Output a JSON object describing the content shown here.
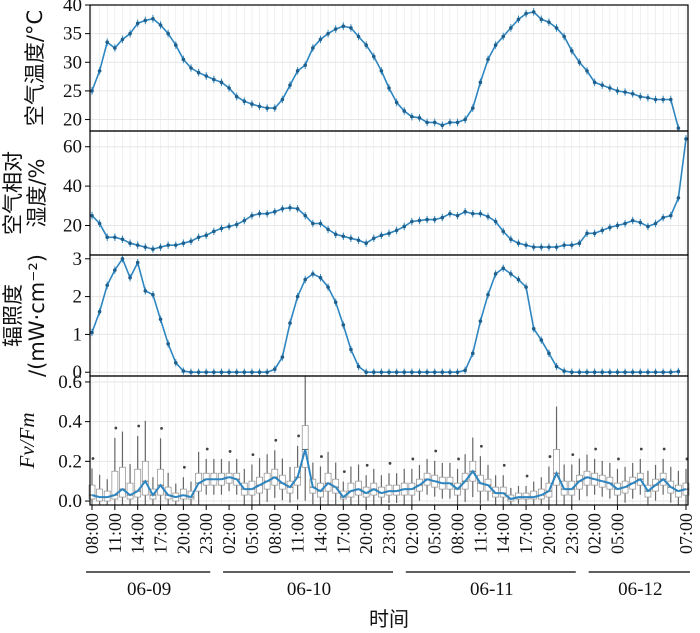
{
  "xaxis": {
    "title": "时间",
    "time_ticks": [
      "08:00",
      "11:00",
      "14:00",
      "17:00",
      "20:00",
      "23:00",
      "02:00",
      "05:00",
      "08:00",
      "11:00",
      "14:00",
      "17:00",
      "20:00",
      "23:00",
      "02:00",
      "05:00",
      "08:00",
      "11:00",
      "14:00",
      "17:00",
      "20:00",
      "23:00",
      "02:00",
      "05:00",
      "07:00"
    ],
    "days": [
      "06-09",
      "06-10",
      "06-11",
      "06-12"
    ]
  },
  "colors": {
    "line": "#2e86c1",
    "grid": "#e6e6e6",
    "box": "#666666"
  },
  "chart_data": [
    {
      "type": "line",
      "ylabel": "空气温度/°C",
      "ylim": [
        18,
        40
      ],
      "yticks": [
        20,
        25,
        30,
        35,
        40
      ],
      "x_start": "06-09 08:00",
      "step_hours": 1,
      "values": [
        25,
        28.5,
        33.5,
        32.5,
        34,
        35,
        36.8,
        37.3,
        37.6,
        36.5,
        35,
        33,
        30.5,
        29,
        28.2,
        27.6,
        27,
        26.5,
        25.5,
        24,
        23.2,
        22.7,
        22.3,
        22,
        22,
        23.5,
        26,
        28.5,
        29.5,
        32.5,
        34,
        35,
        35.8,
        36.3,
        36,
        34.5,
        33,
        31,
        28.5,
        25.5,
        23,
        21.5,
        20.5,
        20.3,
        19.5,
        19.5,
        19,
        19.5,
        19.5,
        20,
        22,
        26.5,
        30.5,
        33,
        34.5,
        36,
        37.5,
        38.5,
        38.8,
        37.5,
        37,
        36,
        34.5,
        32,
        30,
        28.5,
        26.5,
        26,
        25.5,
        25,
        24.8,
        24.5,
        24,
        23.8,
        23.5,
        23.5,
        23.5,
        18.5
      ],
      "grid": true
    },
    {
      "type": "line",
      "ylabel": "空气相对湿度/%",
      "ylim": [
        5,
        68
      ],
      "yticks": [
        20,
        40,
        60
      ],
      "x_start": "06-09 08:00",
      "step_hours": 1,
      "values": [
        25,
        21,
        14,
        14,
        13,
        11,
        10,
        9,
        8,
        9,
        10,
        10,
        11,
        12,
        14,
        15,
        17,
        18.5,
        19.5,
        20.5,
        22.5,
        25,
        26,
        26,
        27,
        28.5,
        29,
        28.5,
        25,
        21,
        21,
        18,
        15.5,
        14.5,
        13.5,
        12.5,
        11,
        13.5,
        15,
        16,
        17.5,
        19.5,
        22,
        22.5,
        23,
        23,
        24,
        26,
        25,
        27,
        26,
        26,
        24.5,
        22,
        17,
        13,
        11,
        10,
        9,
        9,
        9,
        9,
        10,
        10,
        11,
        16,
        16,
        17.5,
        19,
        20,
        21,
        22.5,
        21.5,
        19.5,
        21,
        24,
        25,
        34,
        64
      ],
      "grid": true
    },
    {
      "type": "line",
      "ylabel": "辐照度/(mW·cm⁻²)",
      "ylim": [
        -0.1,
        3.1
      ],
      "yticks": [
        0,
        1,
        2,
        3
      ],
      "x_start": "06-09 08:00",
      "step_hours": 1,
      "values": [
        1.05,
        1.6,
        2.3,
        2.7,
        3.0,
        2.5,
        2.9,
        2.15,
        2.05,
        1.4,
        0.75,
        0.25,
        0.03,
        0,
        0,
        0,
        0,
        0,
        0,
        0,
        0,
        0,
        0,
        0,
        0.08,
        0.4,
        1.3,
        2.0,
        2.45,
        2.6,
        2.5,
        2.25,
        1.85,
        1.25,
        0.6,
        0.15,
        0,
        0,
        0,
        0,
        0,
        0,
        0,
        0,
        0,
        0,
        0,
        0,
        0,
        0.05,
        0.5,
        1.35,
        2.05,
        2.6,
        2.75,
        2.6,
        2.45,
        2.25,
        1.15,
        0.85,
        0.5,
        0.15,
        0.03,
        0,
        0,
        0,
        0,
        0,
        0,
        0,
        0,
        0,
        0,
        0,
        0,
        0,
        0,
        0.02
      ],
      "grid": true
    },
    {
      "type": "box",
      "ylabel": "Fv/Fm",
      "ylim": [
        -0.02,
        0.63
      ],
      "yticks": [
        0.0,
        0.2,
        0.4,
        0.6
      ],
      "ytick_labels": [
        "0.0",
        "0.2",
        "0.4",
        "0.6"
      ],
      "x_start": "06-09 08:00",
      "step_hours": 1,
      "median": [
        0.03,
        0.02,
        0.02,
        0.03,
        0.06,
        0.03,
        0.05,
        0.1,
        0.03,
        0.08,
        0.03,
        0.02,
        0.03,
        0.02,
        0.09,
        0.11,
        0.11,
        0.11,
        0.12,
        0.11,
        0.06,
        0.06,
        0.08,
        0.1,
        0.12,
        0.09,
        0.07,
        0.12,
        0.26,
        0.07,
        0.05,
        0.09,
        0.07,
        0.02,
        0.05,
        0.06,
        0.04,
        0.06,
        0.04,
        0.05,
        0.05,
        0.06,
        0.06,
        0.08,
        0.11,
        0.1,
        0.09,
        0.09,
        0.06,
        0.1,
        0.15,
        0.09,
        0.08,
        0.04,
        0.04,
        0.01,
        0.02,
        0.02,
        0.02,
        0.03,
        0.05,
        0.14,
        0.06,
        0.06,
        0.1,
        0.12,
        0.11,
        0.1,
        0.09,
        0.06,
        0.07,
        0.09,
        0.11,
        0.05,
        0.08,
        0.11,
        0.07,
        0.05,
        0.06
      ],
      "q1": [
        0.01,
        0.0,
        0.0,
        0.01,
        0.02,
        0.01,
        0.02,
        0.03,
        0.01,
        0.03,
        0.01,
        0.0,
        0.01,
        0.01,
        0.05,
        0.08,
        0.08,
        0.08,
        0.09,
        0.08,
        0.03,
        0.03,
        0.04,
        0.06,
        0.08,
        0.06,
        0.04,
        0.08,
        0.17,
        0.04,
        0.02,
        0.05,
        0.04,
        0.01,
        0.02,
        0.03,
        0.02,
        0.03,
        0.02,
        0.03,
        0.03,
        0.03,
        0.03,
        0.05,
        0.08,
        0.07,
        0.06,
        0.06,
        0.03,
        0.06,
        0.1,
        0.05,
        0.05,
        0.02,
        0.02,
        0.0,
        0.01,
        0.01,
        0.01,
        0.01,
        0.02,
        0.08,
        0.03,
        0.03,
        0.06,
        0.08,
        0.08,
        0.07,
        0.06,
        0.03,
        0.04,
        0.06,
        0.08,
        0.02,
        0.05,
        0.08,
        0.04,
        0.02,
        0.03
      ],
      "q3": [
        0.08,
        0.06,
        0.05,
        0.15,
        0.17,
        0.09,
        0.16,
        0.2,
        0.06,
        0.16,
        0.07,
        0.04,
        0.06,
        0.05,
        0.14,
        0.14,
        0.14,
        0.14,
        0.14,
        0.14,
        0.09,
        0.1,
        0.12,
        0.14,
        0.16,
        0.13,
        0.1,
        0.17,
        0.38,
        0.11,
        0.09,
        0.14,
        0.11,
        0.05,
        0.09,
        0.1,
        0.07,
        0.09,
        0.07,
        0.08,
        0.08,
        0.09,
        0.09,
        0.11,
        0.14,
        0.13,
        0.12,
        0.12,
        0.09,
        0.14,
        0.2,
        0.13,
        0.11,
        0.07,
        0.07,
        0.03,
        0.04,
        0.04,
        0.05,
        0.06,
        0.09,
        0.26,
        0.1,
        0.1,
        0.13,
        0.15,
        0.14,
        0.13,
        0.12,
        0.09,
        0.1,
        0.12,
        0.14,
        0.08,
        0.11,
        0.14,
        0.1,
        0.08,
        0.09
      ]
    }
  ]
}
